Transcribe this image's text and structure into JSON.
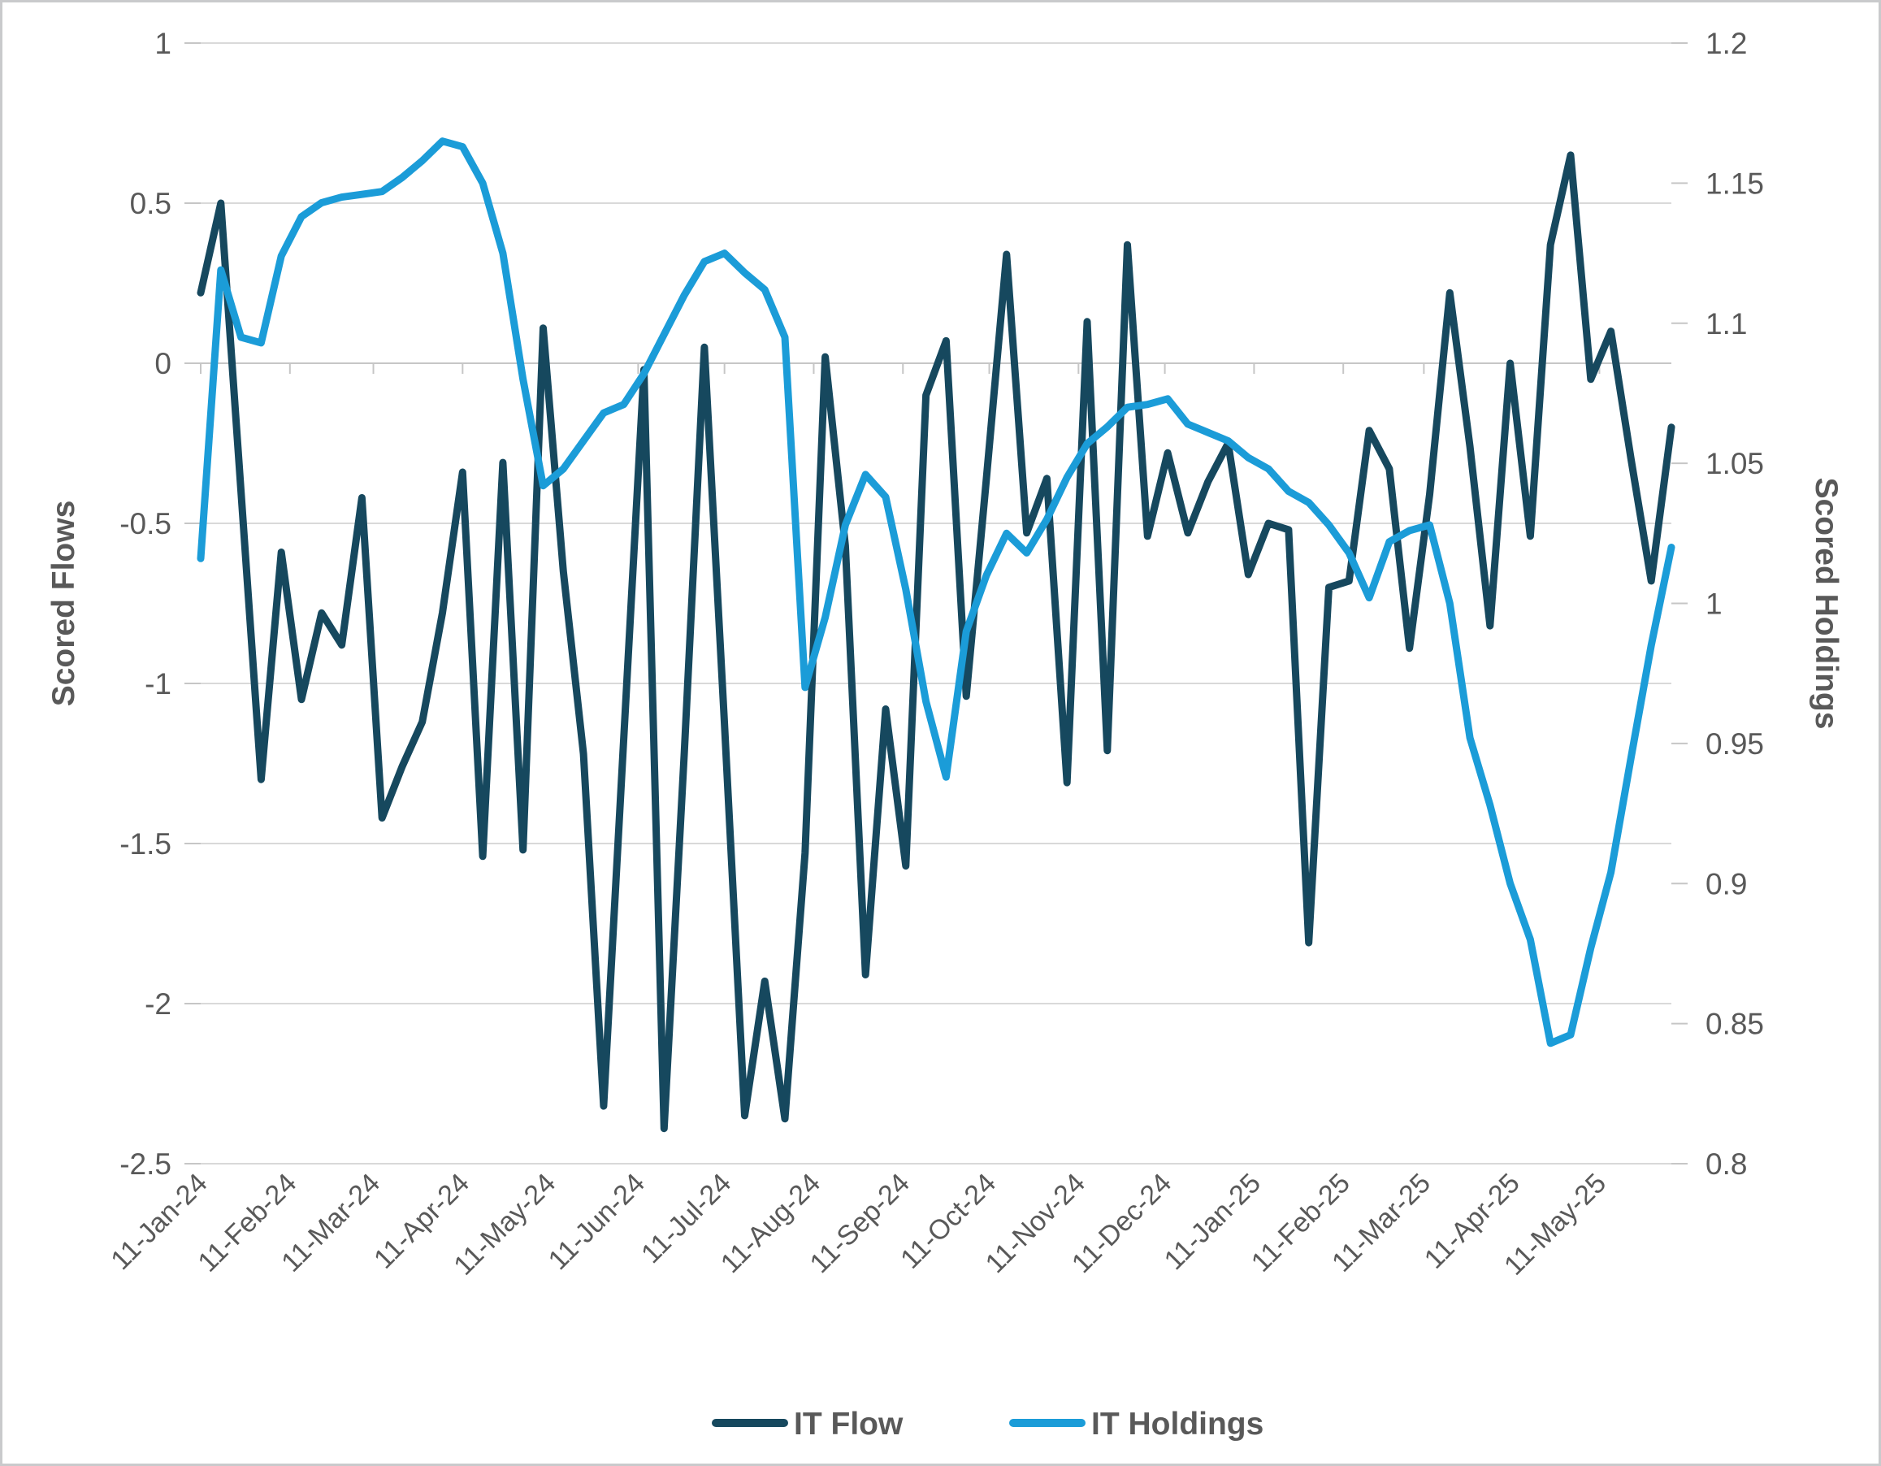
{
  "chart_data": {
    "type": "line",
    "title": "",
    "x_dates": [
      "11-Jan-24",
      "18-Jan-24",
      "25-Jan-24",
      "1-Feb-24",
      "8-Feb-24",
      "15-Feb-24",
      "22-Feb-24",
      "29-Feb-24",
      "7-Mar-24",
      "14-Mar-24",
      "21-Mar-24",
      "28-Mar-24",
      "4-Apr-24",
      "11-Apr-24",
      "18-Apr-24",
      "25-Apr-24",
      "2-May-24",
      "9-May-24",
      "16-May-24",
      "23-May-24",
      "30-May-24",
      "6-Jun-24",
      "13-Jun-24",
      "20-Jun-24",
      "27-Jun-24",
      "4-Jul-24",
      "11-Jul-24",
      "18-Jul-24",
      "25-Jul-24",
      "1-Aug-24",
      "8-Aug-24",
      "15-Aug-24",
      "22-Aug-24",
      "29-Aug-24",
      "5-Sep-24",
      "12-Sep-24",
      "19-Sep-24",
      "26-Sep-24",
      "3-Oct-24",
      "10-Oct-24",
      "17-Oct-24",
      "24-Oct-24",
      "31-Oct-24",
      "7-Nov-24",
      "14-Nov-24",
      "21-Nov-24",
      "28-Nov-24",
      "5-Dec-24",
      "12-Dec-24",
      "19-Dec-24",
      "26-Dec-24",
      "2-Jan-25",
      "9-Jan-25",
      "16-Jan-25",
      "23-Jan-25",
      "30-Jan-25",
      "6-Feb-25",
      "13-Feb-25",
      "20-Feb-25",
      "27-Feb-25",
      "6-Mar-25",
      "13-Mar-25",
      "20-Mar-25",
      "27-Mar-25",
      "3-Apr-25",
      "10-Apr-25",
      "17-Apr-25",
      "24-Apr-25",
      "1-May-25",
      "8-May-25",
      "15-May-25",
      "22-May-25",
      "29-May-25",
      "5-Jun-25"
    ],
    "series": [
      {
        "name": "IT Flow",
        "axis": "left",
        "color": "#16485e",
        "values": [
          0.22,
          0.5,
          -0.4,
          -1.3,
          -0.59,
          -1.05,
          -0.78,
          -0.88,
          -0.42,
          -1.42,
          -1.26,
          -1.12,
          -0.78,
          -0.34,
          -1.54,
          -0.31,
          -1.52,
          0.11,
          -0.65,
          -1.22,
          -2.32,
          -1.17,
          -0.02,
          -2.39,
          -1.22,
          0.05,
          -1.13,
          -2.35,
          -1.93,
          -2.36,
          -1.53,
          0.02,
          -0.57,
          -1.91,
          -1.08,
          -1.57,
          -0.1,
          0.07,
          -1.04,
          -0.36,
          0.34,
          -0.53,
          -0.36,
          -1.31,
          0.13,
          -1.21,
          0.37,
          -0.54,
          -0.28,
          -0.53,
          -0.37,
          -0.25,
          -0.66,
          -0.5,
          -0.52,
          -1.81,
          -0.7,
          -0.68,
          -0.21,
          -0.33,
          -0.89,
          -0.41,
          0.22,
          -0.26,
          -0.82,
          0.0,
          -0.54,
          0.37,
          0.65,
          -0.05,
          0.1,
          -0.3,
          -0.68,
          -0.2
        ]
      },
      {
        "name": "IT Holdings",
        "axis": "right",
        "color": "#1b9cd8",
        "values": [
          1.016,
          1.119,
          1.095,
          1.093,
          1.124,
          1.138,
          1.143,
          1.145,
          1.146,
          1.147,
          1.152,
          1.158,
          1.165,
          1.163,
          1.15,
          1.125,
          1.08,
          1.042,
          1.048,
          1.058,
          1.068,
          1.071,
          1.082,
          1.096,
          1.11,
          1.122,
          1.125,
          1.118,
          1.112,
          1.095,
          0.97,
          0.995,
          1.028,
          1.046,
          1.038,
          1.005,
          0.965,
          0.938,
          0.99,
          1.01,
          1.025,
          1.018,
          1.03,
          1.045,
          1.057,
          1.063,
          1.07,
          1.071,
          1.073,
          1.064,
          1.061,
          1.058,
          1.052,
          1.048,
          1.04,
          1.036,
          1.028,
          1.018,
          1.002,
          1.022,
          1.026,
          1.028,
          1.0,
          0.952,
          0.928,
          0.9,
          0.88,
          0.843,
          0.846,
          0.877,
          0.904,
          0.945,
          0.985,
          1.02
        ]
      }
    ],
    "left_axis": {
      "title": "Scored Flows",
      "min": -2.5,
      "max": 1,
      "tick_values": [
        1,
        0.5,
        0,
        -0.5,
        -1,
        -1.5,
        -2,
        -2.5
      ],
      "tick_labels": [
        "1",
        "0.5",
        "0",
        "-0.5",
        "-1",
        "-1.5",
        "-2",
        "-2.5"
      ]
    },
    "right_axis": {
      "title": "Scored Holdings",
      "min": 0.8,
      "max": 1.2,
      "tick_values": [
        1.2,
        1.15,
        1.1,
        1.05,
        1,
        0.95,
        0.9,
        0.85,
        0.8
      ],
      "tick_labels": [
        "1.2",
        "1.15",
        "1.1",
        "1.05",
        "1",
        "0.95",
        "0.9",
        "0.85",
        "0.8"
      ]
    },
    "x_axis": {
      "tick_labels": [
        "11-Jan-24",
        "11-Feb-24",
        "11-Mar-24",
        "11-Apr-24",
        "11-May-24",
        "11-Jun-24",
        "11-Jul-24",
        "11-Aug-24",
        "11-Sep-24",
        "11-Oct-24",
        "11-Nov-24",
        "11-Dec-24",
        "11-Jan-25",
        "11-Feb-25",
        "11-Mar-25",
        "11-Apr-25",
        "11-May-25"
      ],
      "tick_day_offsets": [
        0,
        31,
        60,
        91,
        121,
        152,
        182,
        213,
        244,
        274,
        305,
        335,
        366,
        397,
        425,
        456,
        486
      ],
      "total_days": 511
    },
    "legend": [
      "IT Flow",
      "IT Holdings"
    ],
    "legend_position": "bottom",
    "grid": true
  },
  "colors": {
    "flow": "#16485e",
    "holdings": "#1b9cd8",
    "gridline": "#d9d9d9",
    "zero_axis": "#c6c6c6",
    "tick": "#c6c6c6",
    "axis_text": "#595959",
    "border": "#c9cacc",
    "background": "#ffffff"
  }
}
